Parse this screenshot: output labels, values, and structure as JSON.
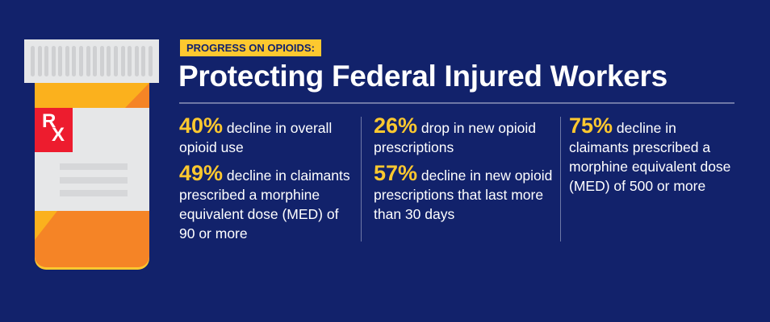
{
  "icon": {
    "name": "prescription-bottle-icon",
    "label_text": "RX"
  },
  "header": {
    "tag": "PROGRESS ON OPIOIDS:",
    "title": "Protecting Federal Injured Workers"
  },
  "columns": [
    {
      "stats": [
        {
          "value": "40%",
          "text": "decline in overall opioid use"
        },
        {
          "value": "49%",
          "text": "decline in claimants prescribed a morphine equivalent dose (MED) of 90 or more"
        }
      ]
    },
    {
      "stats": [
        {
          "value": "26%",
          "text": "drop in new opioid prescriptions"
        },
        {
          "value": "57%",
          "text": "decline in new opioid prescriptions that last more than 30 days"
        }
      ]
    },
    {
      "stats": [
        {
          "value": "75%",
          "text": "decline in claimants prescribed a morphine equivalent dose (MED) of 500 or more"
        }
      ]
    }
  ],
  "colors": {
    "background": "#12226b",
    "accent": "#fdc82f",
    "orange": "#f58426",
    "red": "#ed1c2e"
  }
}
